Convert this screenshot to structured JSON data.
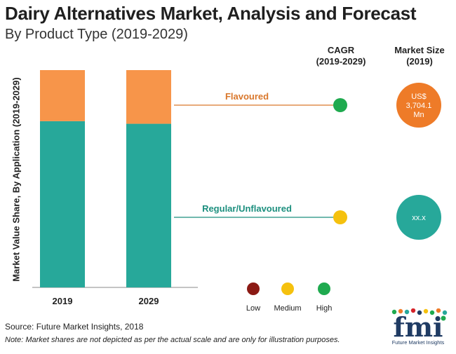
{
  "header": {
    "title": "Dairy Alternatives Market, Analysis and Forecast",
    "subtitle": "By Product Type (2019-2029)"
  },
  "columns": {
    "cagr": [
      "CAGR",
      "(2019-2029)"
    ],
    "market_size": [
      "Market Size",
      "(2019)"
    ]
  },
  "segments": [
    {
      "name": "Flavoured",
      "label_color": "#d9772b",
      "cagr_rating": "High",
      "cagr_color": "#1faa4f",
      "market_size": [
        "US$",
        "3,704.1",
        "Mn"
      ],
      "bubble_color": "#ee7b28"
    },
    {
      "name": "Regular/Unflavoured",
      "label_color": "#1c8f7e",
      "cagr_rating": "Medium",
      "cagr_color": "#f5c10e",
      "market_size": [
        "xx.x"
      ],
      "bubble_color": "#27a89a"
    }
  ],
  "cagr_legend": [
    {
      "label": "Low",
      "color": "#8b1a14"
    },
    {
      "label": "Medium",
      "color": "#f5c10e"
    },
    {
      "label": "High",
      "color": "#1faa4f"
    }
  ],
  "chart_data": {
    "type": "bar",
    "stacked": true,
    "categories": [
      "2019",
      "2029"
    ],
    "series": [
      {
        "name": "Regular/Unflavoured",
        "values": [
          76.5,
          75.3
        ],
        "color": "#27a89a"
      },
      {
        "name": "Flavoured",
        "values": [
          23.5,
          24.7
        ],
        "color": "#f7954a"
      }
    ],
    "ylabel": "Market Value Share, By Application (2019-2029)",
    "ylim": [
      0,
      100
    ]
  },
  "source": "Source: Future Market Insights, 2018",
  "note": "Note: Market shares are not depicted as per the actual scale and are only for illustration purposes.",
  "logo": {
    "text": "fmi",
    "tagline": "Future Market Insights",
    "colors": [
      "#1f3b63",
      "#1faa4f",
      "#ee7b28",
      "#27a89a",
      "#d6232a"
    ]
  }
}
